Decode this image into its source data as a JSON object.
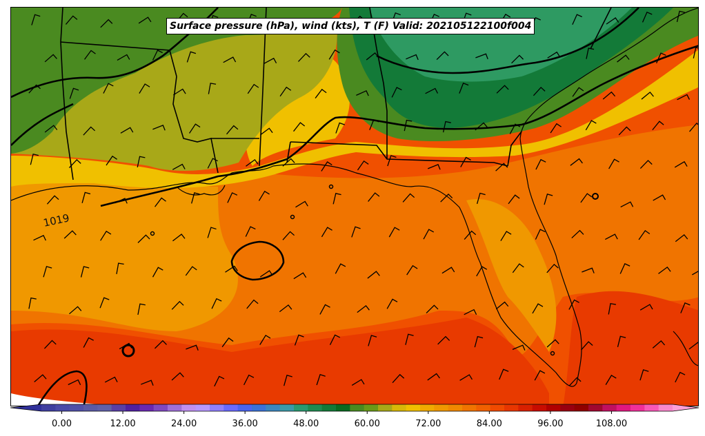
{
  "title": "Surface pressure (hPa), wind (kts), T (F) Valid: 202105122100f004",
  "isobar_label": "1019",
  "colorbar": {
    "min": -4,
    "max": 120,
    "step": 2,
    "ticks": [
      "0.00",
      "12.00",
      "24.00",
      "36.00",
      "48.00",
      "60.00",
      "72.00",
      "84.00",
      "96.00",
      "108.00"
    ],
    "colors": [
      "#3f3fa0",
      "#4a4aa8",
      "#5050a8",
      "#5a5aa5",
      "#6060a8",
      "#5a3fa6",
      "#5020a0",
      "#6a28b0",
      "#8048c0",
      "#a070d8",
      "#c090f0",
      "#b898ff",
      "#9080ff",
      "#6a6aff",
      "#4a64f0",
      "#3a72d8",
      "#3a86c0",
      "#3a9aa8",
      "#2a9a70",
      "#1f8a50",
      "#137a38",
      "#0a6a20",
      "#4a8a20",
      "#6a9a18",
      "#a8a818",
      "#d8b808",
      "#f0c000",
      "#f0aa00",
      "#f09800",
      "#f08800",
      "#f07400",
      "#f06000",
      "#f04a00",
      "#e83600",
      "#d82000",
      "#c80c00",
      "#b00000",
      "#980010",
      "#900000",
      "#a00830",
      "#c01060",
      "#e01880",
      "#f0309a",
      "#f858b8",
      "#f888cc"
    ]
  },
  "temperature_regions": [
    {
      "name": "cool-northeast",
      "color": "#2e9a62"
    },
    {
      "name": "green-band",
      "color": "#137a38"
    },
    {
      "name": "olive-north",
      "color": "#4a8a20"
    },
    {
      "name": "olive-yellow",
      "color": "#a8a818"
    },
    {
      "name": "yellow-coast",
      "color": "#f0c000"
    },
    {
      "name": "orange-gulf",
      "color": "#f09800"
    },
    {
      "name": "warm-orange",
      "color": "#f07400"
    },
    {
      "name": "hot-south",
      "color": "#f05000"
    },
    {
      "name": "hottest",
      "color": "#e83a00"
    }
  ]
}
